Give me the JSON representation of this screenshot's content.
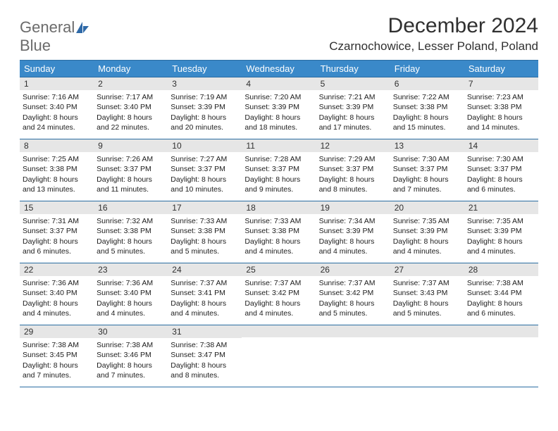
{
  "logo": {
    "text1": "General",
    "text2": "Blue",
    "text1_color": "#6b6b6b",
    "text2_color": "#3a7fc4",
    "icon_color": "#2f6aa8",
    "fontsize": 22
  },
  "title": "December 2024",
  "title_fontsize": 30,
  "location": "Czarnochowice, Lesser Poland, Poland",
  "location_fontsize": 17,
  "header_bg": "#3a89c9",
  "header_text_color": "#ffffff",
  "daynum_bg": "#e6e6e6",
  "border_color": "#2a6da2",
  "background_color": "#ffffff",
  "text_color": "#202020",
  "cell_fontsize": 10.5,
  "daynum_fontsize": 12,
  "header_fontsize": 13,
  "day_headers": [
    "Sunday",
    "Monday",
    "Tuesday",
    "Wednesday",
    "Thursday",
    "Friday",
    "Saturday"
  ],
  "weeks": [
    [
      {
        "num": "1",
        "sunrise": "7:16 AM",
        "sunset": "3:40 PM",
        "daylight": "8 hours and 24 minutes."
      },
      {
        "num": "2",
        "sunrise": "7:17 AM",
        "sunset": "3:40 PM",
        "daylight": "8 hours and 22 minutes."
      },
      {
        "num": "3",
        "sunrise": "7:19 AM",
        "sunset": "3:39 PM",
        "daylight": "8 hours and 20 minutes."
      },
      {
        "num": "4",
        "sunrise": "7:20 AM",
        "sunset": "3:39 PM",
        "daylight": "8 hours and 18 minutes."
      },
      {
        "num": "5",
        "sunrise": "7:21 AM",
        "sunset": "3:39 PM",
        "daylight": "8 hours and 17 minutes."
      },
      {
        "num": "6",
        "sunrise": "7:22 AM",
        "sunset": "3:38 PM",
        "daylight": "8 hours and 15 minutes."
      },
      {
        "num": "7",
        "sunrise": "7:23 AM",
        "sunset": "3:38 PM",
        "daylight": "8 hours and 14 minutes."
      }
    ],
    [
      {
        "num": "8",
        "sunrise": "7:25 AM",
        "sunset": "3:38 PM",
        "daylight": "8 hours and 13 minutes."
      },
      {
        "num": "9",
        "sunrise": "7:26 AM",
        "sunset": "3:37 PM",
        "daylight": "8 hours and 11 minutes."
      },
      {
        "num": "10",
        "sunrise": "7:27 AM",
        "sunset": "3:37 PM",
        "daylight": "8 hours and 10 minutes."
      },
      {
        "num": "11",
        "sunrise": "7:28 AM",
        "sunset": "3:37 PM",
        "daylight": "8 hours and 9 minutes."
      },
      {
        "num": "12",
        "sunrise": "7:29 AM",
        "sunset": "3:37 PM",
        "daylight": "8 hours and 8 minutes."
      },
      {
        "num": "13",
        "sunrise": "7:30 AM",
        "sunset": "3:37 PM",
        "daylight": "8 hours and 7 minutes."
      },
      {
        "num": "14",
        "sunrise": "7:30 AM",
        "sunset": "3:37 PM",
        "daylight": "8 hours and 6 minutes."
      }
    ],
    [
      {
        "num": "15",
        "sunrise": "7:31 AM",
        "sunset": "3:37 PM",
        "daylight": "8 hours and 6 minutes."
      },
      {
        "num": "16",
        "sunrise": "7:32 AM",
        "sunset": "3:38 PM",
        "daylight": "8 hours and 5 minutes."
      },
      {
        "num": "17",
        "sunrise": "7:33 AM",
        "sunset": "3:38 PM",
        "daylight": "8 hours and 5 minutes."
      },
      {
        "num": "18",
        "sunrise": "7:33 AM",
        "sunset": "3:38 PM",
        "daylight": "8 hours and 4 minutes."
      },
      {
        "num": "19",
        "sunrise": "7:34 AM",
        "sunset": "3:39 PM",
        "daylight": "8 hours and 4 minutes."
      },
      {
        "num": "20",
        "sunrise": "7:35 AM",
        "sunset": "3:39 PM",
        "daylight": "8 hours and 4 minutes."
      },
      {
        "num": "21",
        "sunrise": "7:35 AM",
        "sunset": "3:39 PM",
        "daylight": "8 hours and 4 minutes."
      }
    ],
    [
      {
        "num": "22",
        "sunrise": "7:36 AM",
        "sunset": "3:40 PM",
        "daylight": "8 hours and 4 minutes."
      },
      {
        "num": "23",
        "sunrise": "7:36 AM",
        "sunset": "3:40 PM",
        "daylight": "8 hours and 4 minutes."
      },
      {
        "num": "24",
        "sunrise": "7:37 AM",
        "sunset": "3:41 PM",
        "daylight": "8 hours and 4 minutes."
      },
      {
        "num": "25",
        "sunrise": "7:37 AM",
        "sunset": "3:42 PM",
        "daylight": "8 hours and 4 minutes."
      },
      {
        "num": "26",
        "sunrise": "7:37 AM",
        "sunset": "3:42 PM",
        "daylight": "8 hours and 5 minutes."
      },
      {
        "num": "27",
        "sunrise": "7:37 AM",
        "sunset": "3:43 PM",
        "daylight": "8 hours and 5 minutes."
      },
      {
        "num": "28",
        "sunrise": "7:38 AM",
        "sunset": "3:44 PM",
        "daylight": "8 hours and 6 minutes."
      }
    ],
    [
      {
        "num": "29",
        "sunrise": "7:38 AM",
        "sunset": "3:45 PM",
        "daylight": "8 hours and 7 minutes."
      },
      {
        "num": "30",
        "sunrise": "7:38 AM",
        "sunset": "3:46 PM",
        "daylight": "8 hours and 7 minutes."
      },
      {
        "num": "31",
        "sunrise": "7:38 AM",
        "sunset": "3:47 PM",
        "daylight": "8 hours and 8 minutes."
      },
      {
        "empty": true
      },
      {
        "empty": true
      },
      {
        "empty": true
      },
      {
        "empty": true
      }
    ]
  ],
  "labels": {
    "sunrise": "Sunrise:",
    "sunset": "Sunset:",
    "daylight": "Daylight:"
  }
}
